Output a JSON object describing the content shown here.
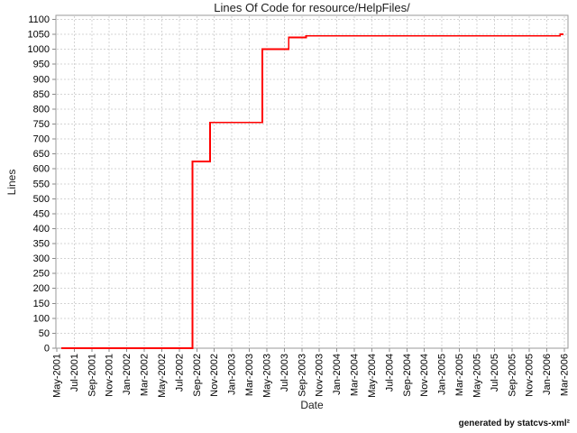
{
  "window": {
    "background": "#ffffff"
  },
  "footer": {
    "credit": "generated by statcvs-xml²"
  },
  "chart_data": {
    "type": "line",
    "line_style": "step-after",
    "title": "Lines Of Code for resource/HelpFiles/",
    "xlabel": "Date",
    "ylabel": "Lines",
    "ylim": [
      0,
      1100
    ],
    "y_tick_interval": 50,
    "grid": "dashed",
    "legend": "none",
    "colors": {
      "line": "#ff0000",
      "grid": "#d4d4d4",
      "axis": "#9a9a9a",
      "text": "#000000"
    },
    "y_ticks": [
      0,
      50,
      100,
      150,
      200,
      250,
      300,
      350,
      400,
      450,
      500,
      550,
      600,
      650,
      700,
      750,
      800,
      850,
      900,
      950,
      1000,
      1050,
      1100
    ],
    "x_ticks": [
      "May-2001",
      "Jul-2001",
      "Sep-2001",
      "Nov-2001",
      "Jan-2002",
      "Mar-2002",
      "May-2002",
      "Jul-2002",
      "Sep-2002",
      "Nov-2002",
      "Jan-2003",
      "Mar-2003",
      "May-2003",
      "Jul-2003",
      "Sep-2003",
      "Nov-2003",
      "Jan-2004",
      "Mar-2004",
      "May-2004",
      "Jul-2004",
      "Sep-2004",
      "Nov-2004",
      "Jan-2005",
      "Mar-2005",
      "May-2005",
      "Jul-2005",
      "Sep-2005",
      "Nov-2005",
      "Jan-2006",
      "Mar-2006"
    ],
    "series": [
      {
        "name": "Lines of Code",
        "color": "#ff0000",
        "points": [
          [
            "May-2001",
            0
          ],
          [
            "Aug-2002",
            625
          ],
          [
            "Oct-2002",
            755
          ],
          [
            "Apr-2003",
            1000
          ],
          [
            "Jul-2003",
            1040
          ],
          [
            "Sep-2003",
            1045
          ],
          [
            "Feb-2006",
            1050
          ]
        ]
      }
    ]
  }
}
